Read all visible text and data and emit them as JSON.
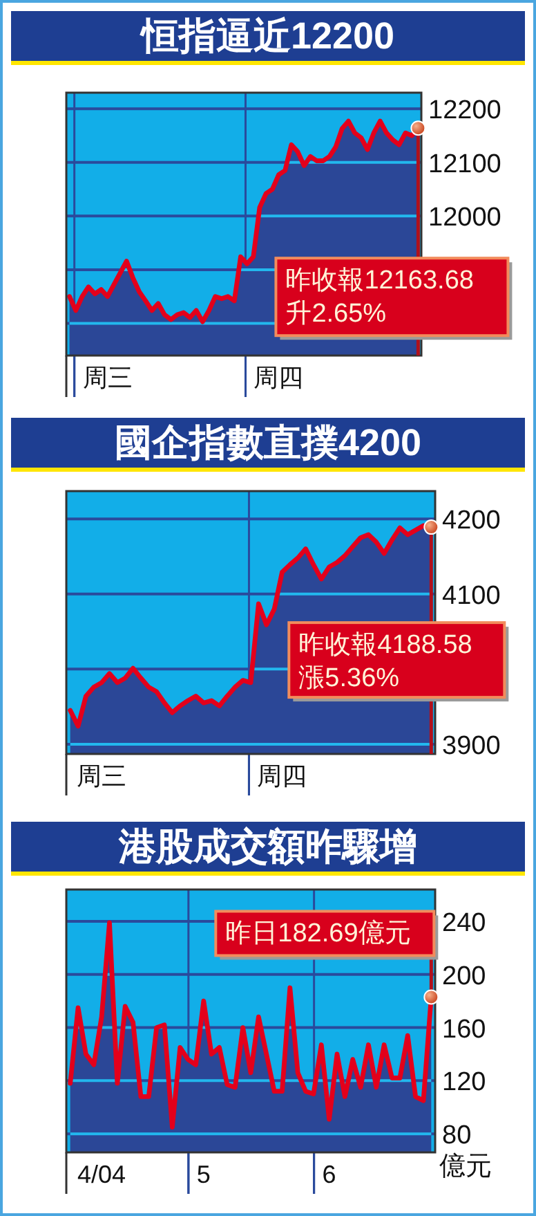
{
  "chart_data": [
    {
      "type": "area",
      "title": "恒指逼近12200",
      "ylim": [
        11740,
        12230
      ],
      "categories": [
        null,
        null,
        null,
        null,
        null,
        null,
        "周三",
        null,
        null,
        null,
        null,
        null,
        null,
        null,
        null,
        null,
        null,
        null,
        null,
        null,
        null,
        null,
        null,
        null,
        null,
        null,
        null,
        null,
        null,
        null,
        null,
        null,
        null,
        "周四",
        null,
        null,
        null,
        null,
        null,
        null,
        null,
        null,
        null,
        null,
        null,
        null,
        null,
        null,
        null,
        null,
        null,
        null,
        null,
        null,
        null,
        null
      ],
      "yticks": [
        12200,
        12100,
        12000,
        {
          "value": 11900,
          "label": null
        },
        {
          "value": 11800,
          "label": null
        }
      ],
      "grid": "y",
      "series": [
        {
          "color": "#2b4797",
          "values": [
            11850,
            11824,
            11850,
            11868,
            11855,
            11863,
            11850,
            11872,
            11894,
            11916,
            11885,
            11859,
            11842,
            11824,
            11837,
            11816,
            11807,
            11816,
            11820,
            11811,
            11824,
            11803,
            11824,
            11850,
            11846,
            11850,
            11842,
            11924,
            11911,
            11924,
            12016,
            12042,
            12050,
            12077,
            12085,
            12133,
            12120,
            12094,
            12111,
            12103,
            12103,
            12111,
            12129,
            12163,
            12177,
            12155,
            12146,
            12124,
            12155,
            12177,
            12155,
            12142,
            12133,
            12155,
            12150,
            12164
          ]
        },
        {
          "type": "line",
          "color": "#e3001b",
          "values": [
            11850,
            11824,
            11850,
            11868,
            11855,
            11863,
            11850,
            11872,
            11894,
            11916,
            11885,
            11859,
            11842,
            11824,
            11837,
            11816,
            11807,
            11816,
            11820,
            11811,
            11824,
            11803,
            11824,
            11850,
            11846,
            11850,
            11842,
            11924,
            11911,
            11924,
            12016,
            12042,
            12050,
            12077,
            12085,
            12133,
            12120,
            12094,
            12111,
            12103,
            12103,
            12111,
            12129,
            12163,
            12177,
            12155,
            12146,
            12124,
            12155,
            12177,
            12155,
            12142,
            12133,
            12155,
            12150,
            12164
          ]
        }
      ],
      "annotations": [
        "昨收報12163.68\n升2.65%"
      ]
    },
    {
      "type": "area",
      "title": "國企指數直撲4200",
      "ylim": [
        3887,
        4237
      ],
      "categories": [
        null,
        null,
        null,
        null,
        "周三",
        null,
        null,
        null,
        null,
        null,
        null,
        null,
        null,
        null,
        null,
        null,
        null,
        null,
        null,
        null,
        null,
        null,
        null,
        null,
        null,
        null,
        null,
        "周四",
        null,
        null,
        null,
        null,
        null,
        null,
        null,
        null,
        null,
        null,
        null,
        null,
        null,
        null,
        null,
        null,
        null,
        null,
        null
      ],
      "yticks": [
        4200,
        4100,
        {
          "value": 4000,
          "label": null
        },
        3900
      ],
      "grid": "y",
      "series": [
        {
          "color": "#2b4797",
          "values": [
            3945,
            3924,
            3964,
            3976,
            3982,
            3994,
            3982,
            3988,
            4001,
            3988,
            3976,
            3970,
            3955,
            3942,
            3951,
            3958,
            3964,
            3955,
            3958,
            3951,
            3964,
            3976,
            3985,
            3982,
            4087,
            4059,
            4080,
            4129,
            4139,
            4148,
            4160,
            4139,
            4120,
            4136,
            4142,
            4151,
            4163,
            4175,
            4179,
            4169,
            4154,
            4172,
            4188,
            4179,
            4185,
            4191,
            4189
          ]
        },
        {
          "type": "line",
          "color": "#e3001b",
          "values": [
            3945,
            3924,
            3964,
            3976,
            3982,
            3994,
            3982,
            3988,
            4001,
            3988,
            3976,
            3970,
            3955,
            3942,
            3951,
            3958,
            3964,
            3955,
            3958,
            3951,
            3964,
            3976,
            3985,
            3982,
            4087,
            4059,
            4080,
            4129,
            4139,
            4148,
            4160,
            4139,
            4120,
            4136,
            4142,
            4151,
            4163,
            4175,
            4179,
            4169,
            4154,
            4172,
            4188,
            4179,
            4185,
            4191,
            4189
          ]
        }
      ],
      "annotations": [
        "昨收報4188.58\n漲5.36%"
      ]
    },
    {
      "type": "area",
      "title": "港股成交額昨驟增",
      "ylabel": "億元",
      "ylim": [
        66,
        264
      ],
      "categories": [
        null,
        null,
        null,
        null,
        "4/04",
        null,
        null,
        null,
        null,
        null,
        null,
        null,
        null,
        null,
        null,
        null,
        null,
        "5",
        null,
        null,
        null,
        null,
        null,
        null,
        null,
        null,
        null,
        null,
        null,
        null,
        null,
        null,
        null,
        "6",
        null,
        null,
        null,
        null,
        null,
        null,
        null,
        null,
        null,
        null,
        null,
        null,
        null
      ],
      "yticks": [
        240,
        200,
        160,
        120,
        80
      ],
      "grid": "y",
      "series": [
        {
          "color": "#2b4797",
          "values": [
            118,
            175,
            140,
            132,
            168,
            239,
            118,
            176,
            164,
            108,
            108,
            160,
            162,
            85,
            145,
            136,
            132,
            180,
            140,
            145,
            117,
            115,
            160,
            126,
            168,
            140,
            112,
            112,
            190,
            126,
            112,
            110,
            147,
            91,
            140,
            108,
            136,
            115,
            147,
            115,
            147,
            122,
            122,
            154,
            108,
            105,
            183
          ]
        },
        {
          "type": "line",
          "color": "#e3001b",
          "values": [
            118,
            175,
            140,
            132,
            168,
            239,
            118,
            176,
            164,
            108,
            108,
            160,
            162,
            85,
            145,
            136,
            132,
            180,
            140,
            145,
            117,
            115,
            160,
            126,
            168,
            140,
            112,
            112,
            190,
            126,
            112,
            110,
            147,
            91,
            140,
            108,
            136,
            115,
            147,
            115,
            147,
            122,
            122,
            154,
            108,
            105,
            183
          ]
        }
      ],
      "annotations": [
        "昨日182.69億元"
      ]
    }
  ]
}
